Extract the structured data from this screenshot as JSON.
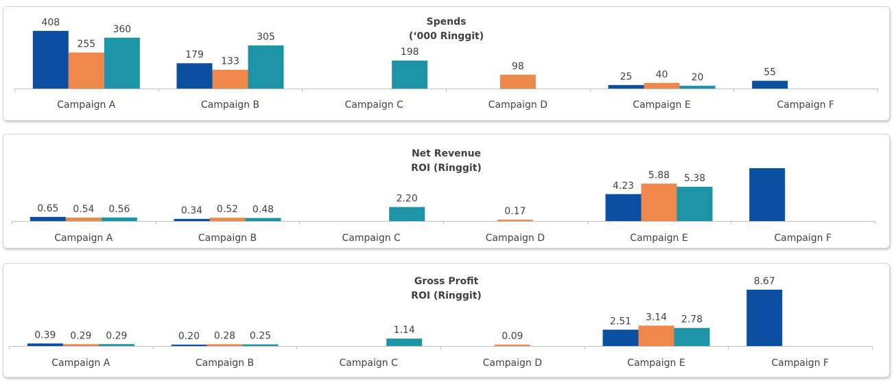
{
  "colors": {
    "series": [
      "#0a4fa0",
      "#f0874a",
      "#1b94a8"
    ],
    "axis": "#bfbfbf",
    "label": "#404040"
  },
  "chart_data": [
    {
      "type": "bar",
      "title_line1": "Spends",
      "title_line2": "(‘000 Ringgit)",
      "categories": [
        "Campaign A",
        "Campaign B",
        "Campaign C",
        "Campaign D",
        "Campaign E",
        "Campaign F"
      ],
      "series": [
        {
          "values": [
            408,
            179,
            null,
            null,
            25,
            55
          ],
          "labels": [
            "408",
            "179",
            "",
            "",
            "25",
            "55"
          ]
        },
        {
          "values": [
            255,
            133,
            null,
            98,
            40,
            null
          ],
          "labels": [
            "255",
            "133",
            "",
            "98",
            "40",
            ""
          ]
        },
        {
          "values": [
            360,
            305,
            198,
            null,
            20,
            null
          ],
          "labels": [
            "360",
            "305",
            "198",
            "",
            "20",
            ""
          ]
        }
      ],
      "ylim": [
        0,
        408
      ]
    },
    {
      "type": "bar",
      "title_line1": "Net Revenue",
      "title_line2": "ROI (Ringgit)",
      "categories": [
        "Campaign A",
        "Campaign B",
        "Campaign C",
        "Campaign D",
        "Campaign E",
        "Campaign F"
      ],
      "series": [
        {
          "values": [
            0.65,
            0.34,
            null,
            null,
            4.23,
            8.3
          ],
          "labels": [
            "0.65",
            "0.34",
            "",
            "",
            "4.23",
            ""
          ]
        },
        {
          "values": [
            0.54,
            0.52,
            null,
            0.17,
            5.88,
            null
          ],
          "labels": [
            "0.54",
            "0.52",
            "",
            "0.17",
            "5.88",
            ""
          ]
        },
        {
          "values": [
            0.56,
            0.48,
            2.2,
            null,
            5.38,
            null
          ],
          "labels": [
            "0.56",
            "0.48",
            "2.20",
            "",
            "5.38",
            ""
          ]
        }
      ],
      "ylim": [
        0,
        8.3
      ]
    },
    {
      "type": "bar",
      "title_line1": "Gross Profit",
      "title_line2": "ROI (Ringgit)",
      "categories": [
        "Campaign A",
        "Campaign B",
        "Campaign C",
        "Campaign D",
        "Campaign E",
        "Campaign F"
      ],
      "series": [
        {
          "values": [
            0.39,
            0.2,
            null,
            null,
            2.51,
            8.67
          ],
          "labels": [
            "0.39",
            "0.20",
            "",
            "",
            "2.51",
            "8.67"
          ]
        },
        {
          "values": [
            0.29,
            0.28,
            null,
            0.09,
            3.14,
            null
          ],
          "labels": [
            "0.29",
            "0.28",
            "",
            "0.09",
            "3.14",
            ""
          ]
        },
        {
          "values": [
            0.29,
            0.25,
            1.14,
            null,
            2.78,
            null
          ],
          "labels": [
            "0.29",
            "0.25",
            "1.14",
            "",
            "2.78",
            ""
          ]
        }
      ],
      "ylim": [
        0,
        8.67
      ]
    }
  ]
}
